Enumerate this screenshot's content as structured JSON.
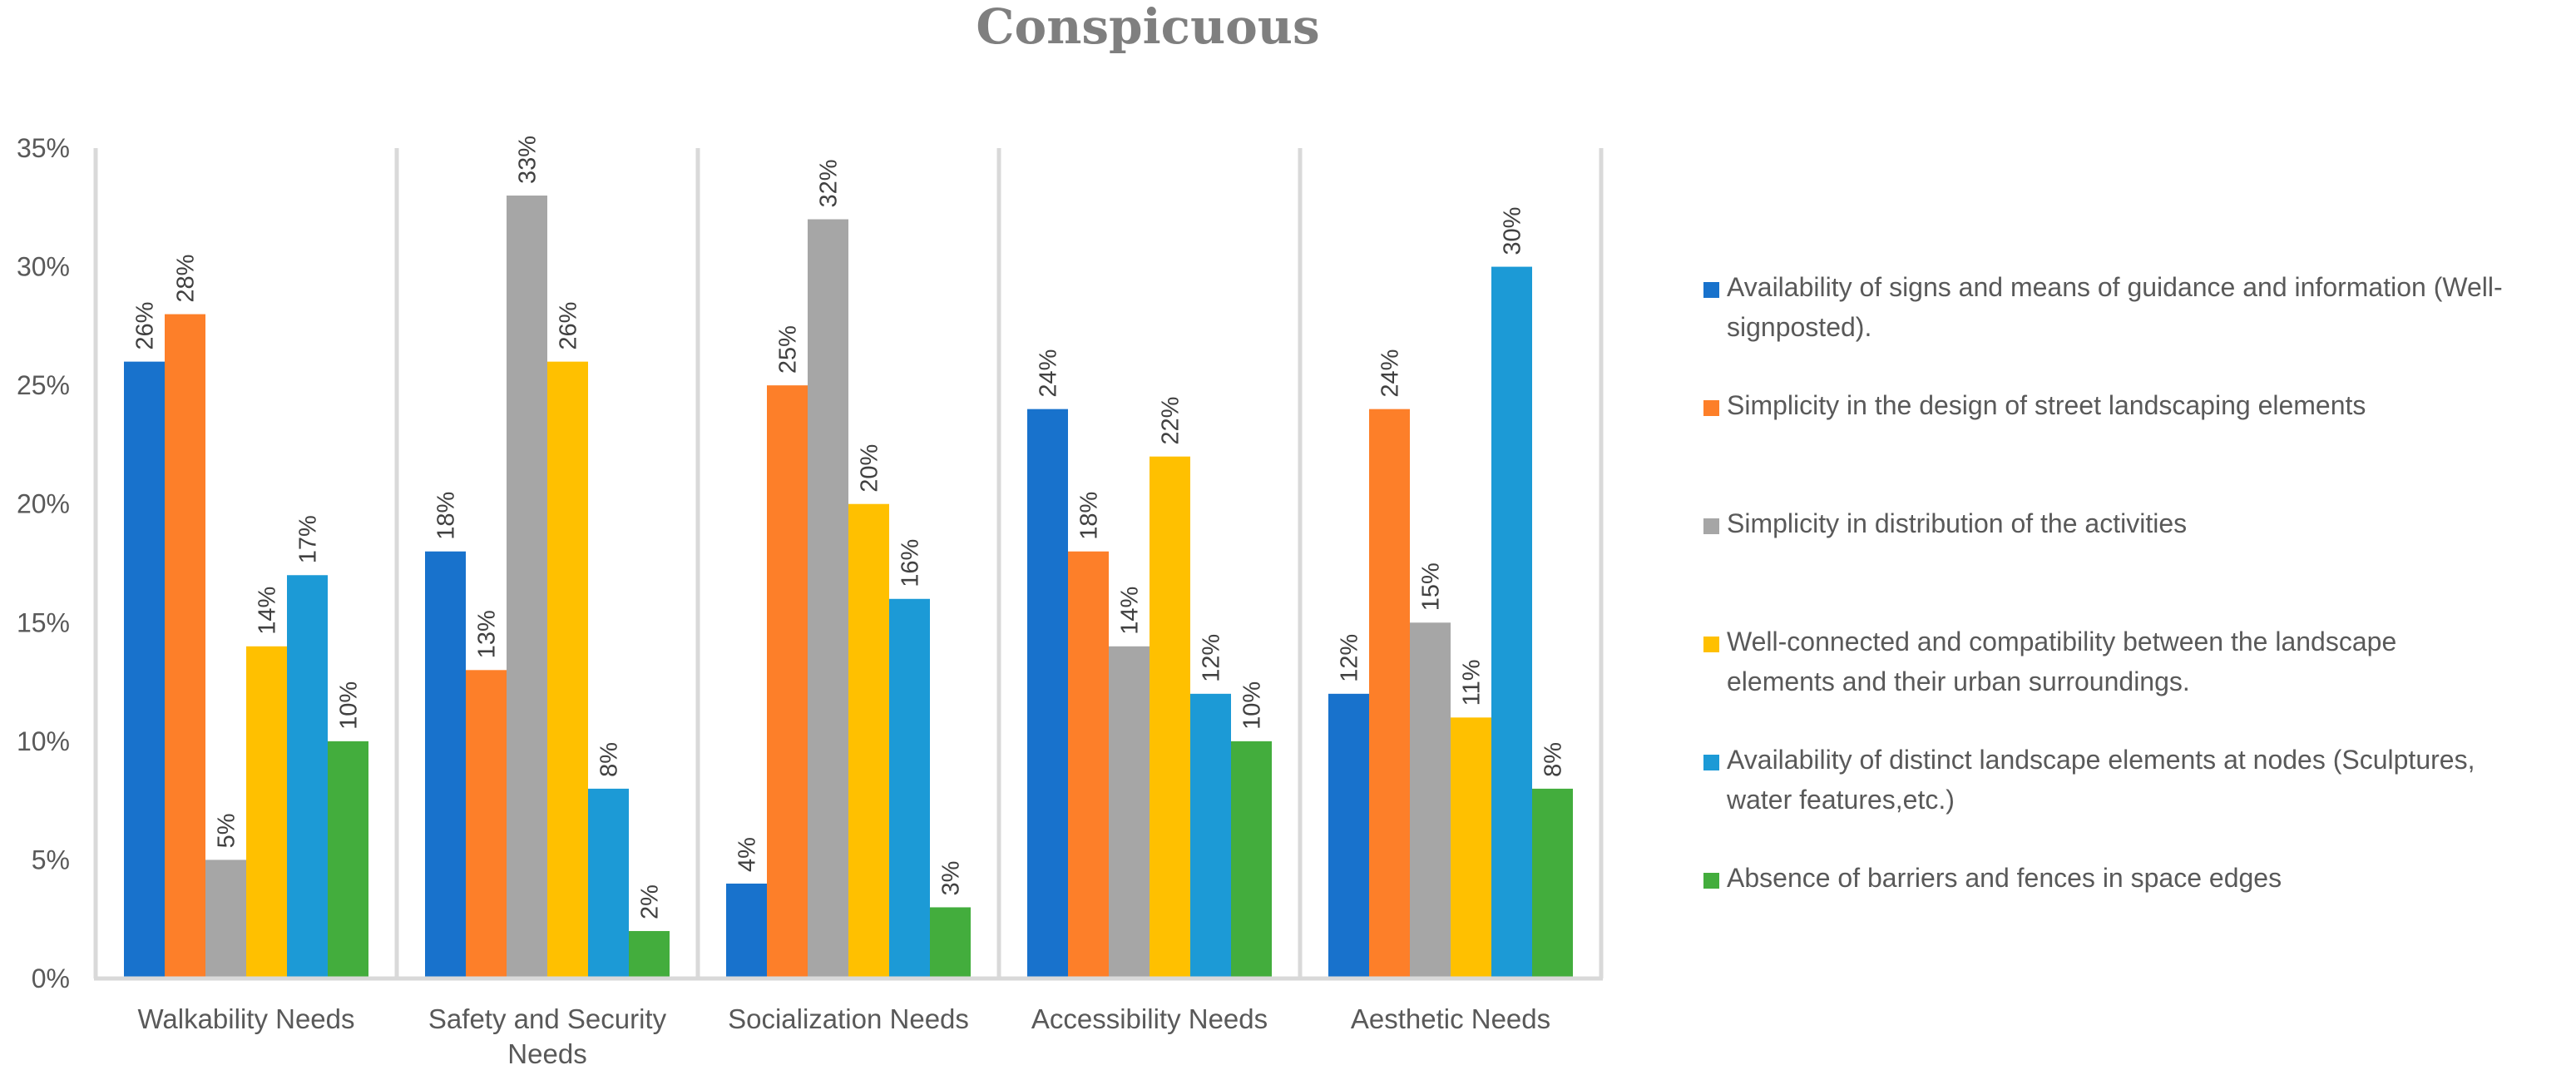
{
  "chart_data": {
    "type": "bar",
    "title": "Conspicuous",
    "xlabel": "",
    "ylabel": "",
    "ylim": [
      0,
      35
    ],
    "yticks": [
      "0%",
      "5%",
      "10%",
      "15%",
      "20%",
      "25%",
      "30%",
      "35%"
    ],
    "categories": [
      [
        "Walkability Needs"
      ],
      [
        "Safety and Security",
        "Needs"
      ],
      [
        "Socialization Needs"
      ],
      [
        "Accessibility Needs"
      ],
      [
        "Aesthetic Needs"
      ]
    ],
    "legend_position": "right",
    "series": [
      {
        "name": "Availability of signs and means of guidance and information (Well-signposted).",
        "legend_lines": [
          "Availability of signs and means of guidance and information (Well-",
          "signposted)."
        ],
        "color": "#1872cc",
        "values": [
          26,
          18,
          4,
          24,
          12
        ],
        "labels": [
          "26%",
          "18%",
          "4%",
          "24%",
          "12%"
        ]
      },
      {
        "name": "Simplicity in the design of street landscaping elements",
        "legend_lines": [
          "Simplicity in the design of street landscaping elements"
        ],
        "color": "#fd7f29",
        "values": [
          28,
          13,
          25,
          18,
          24
        ],
        "labels": [
          "28%",
          "13%",
          "25%",
          "18%",
          "24%"
        ]
      },
      {
        "name": "Simplicity in distribution of the activities",
        "legend_lines": [
          "Simplicity in distribution of the activities"
        ],
        "color": "#a6a6a6",
        "values": [
          5,
          33,
          32,
          14,
          15
        ],
        "labels": [
          "5%",
          "33%",
          "32%",
          "14%",
          "15%"
        ]
      },
      {
        "name": "Well-connected and compatibility between the landscape elements and their urban surroundings.",
        "legend_lines": [
          "Well-connected and compatibility between the landscape",
          "elements and their urban surroundings."
        ],
        "color": "#ffc000",
        "values": [
          14,
          26,
          20,
          22,
          11
        ],
        "labels": [
          "14%",
          "26%",
          "20%",
          "22%",
          "11%"
        ]
      },
      {
        "name": "Availability of distinct landscape elements at nodes (Sculptures, water features,etc.)",
        "legend_lines": [
          "Availability of distinct landscape elements at nodes (Sculptures,",
          "water features,etc.)"
        ],
        "color": "#1c9ad6",
        "values": [
          17,
          8,
          16,
          12,
          30
        ],
        "labels": [
          "17%",
          "8%",
          "16%",
          "12%",
          "30%"
        ]
      },
      {
        "name": "Absence of barriers and fences in space edges",
        "legend_lines": [
          "Absence of barriers and fences in space edges"
        ],
        "color": "#43ad3d",
        "values": [
          10,
          2,
          3,
          10,
          8
        ],
        "labels": [
          "10%",
          "2%",
          "3%",
          "10%",
          "8%"
        ]
      }
    ]
  }
}
